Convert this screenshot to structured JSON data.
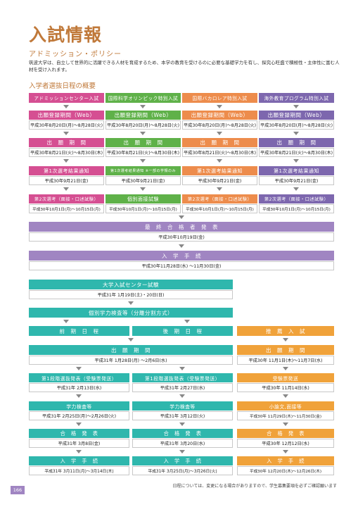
{
  "page": {
    "title": "入試情報",
    "subtitle": "アドミッション・ポリシー",
    "intro": "筑波大学は、自立して世界的に活躍できる人材を育成するため、本学の教育を受けるのに必要な基礎学力を有し、探究心旺盛で積極性・主体性に富む人材を受け入れます。",
    "section_title": "入学者選抜日程の概要",
    "note": "日程については、変更になる場合がありますので、学生募集要項を必ずご確認願います",
    "page_number": "166"
  },
  "special": {
    "columns": [
      {
        "label": "アドミッションセンター入試",
        "color": "#d54f92"
      },
      {
        "label": "国際科学オリンピック特別入試",
        "color": "#5fb149"
      },
      {
        "label": "国際バカロレア特別入試",
        "color": "#ed8c4c"
      },
      {
        "label": "海外教育プログラム特別入試",
        "color": "#7d67ae"
      }
    ],
    "app_label": "出願登録期間（Web）",
    "app_dates": [
      "平成30年8月20日(月)～8月28日(火)",
      "平成30年8月20日(月)～8月28日(火)",
      "平成30年8月20日(月)～8月28日(火)",
      "平成30年8月20日(月)～8月28日(火)"
    ],
    "period_label": "出　願　期　間",
    "period_dates": [
      "平成30年8月21日(火)～8月30日(木)",
      "平成30年8月21日(火)～8月30日(木)",
      "平成30年8月21日(火)～8月30日(木)",
      "平成30年8月21日(火)～8月30日(木)"
    ],
    "first_labels": [
      "第1次選考結果通知",
      "第1次選考結果通知 ※一部の学類のみ",
      "第1次選考結果通知",
      "第1次選考結果通知"
    ],
    "first_dates": [
      "平成30年9月21日(金)",
      "平成30年9月21日(金)",
      "平成30年9月21日(金)",
      "平成30年9月21日(金)"
    ],
    "second_labels": [
      "第2次選考（面接・口述試験）",
      "個別面接試験",
      "第2次選考（面接・口述試験）",
      "第2次選考（面接・口述試験）"
    ],
    "second_dates": [
      "平成30年10月1日(月)～10月15日(月)",
      "平成30年10月1日(月)～10月15日(月)",
      "平成30年10月1日(月)～10月15日(月)",
      "平成30年10月1日(月)～10月15日(月)"
    ],
    "final_label": "最　終　合　格　者　発　表",
    "final_date": "平成30年10月19日(金)",
    "enroll_label": "入　学　手　続",
    "enroll_date": "平成30年11月28日(水) ～11月30日(金)"
  },
  "general": {
    "center_label": "大学入試センター試験",
    "center_date": "平成31年 1月19日(土)・20日(日)",
    "ability_label": "個別学力検査等（分離分割方式）",
    "zenki_label": "前　期　日　程",
    "koki_label": "後　期　日　程",
    "suisen_label": "推　薦　入　試",
    "app_label": "出　願　期　間",
    "app_date": "平成31年 1月28日(月) ～2月6日(水)",
    "suisen_app_label": "出　願　期　間",
    "suisen_app_date": "平成30年 11月1日(木)～11月7日(水)",
    "rows": [
      {
        "zenki": {
          "label": "第1段階選抜発表（受験票発送）",
          "date": "平成31年 2月13日(水)"
        },
        "koki": {
          "label": "第1段階選抜発表（受験票発送）",
          "date": "平成31年 2月27日(水)"
        },
        "suisen": {
          "label": "受験票発送",
          "date": "平成30年 11月14日(水)"
        }
      },
      {
        "zenki": {
          "label": "学力検査等",
          "date": "平成31年 2月25日(月)～2月26日(火)"
        },
        "koki": {
          "label": "学力検査等",
          "date": "平成31年 3月12日(火)"
        },
        "suisen": {
          "label": "小論文,面接等",
          "date": "平成30年 11月29日(木)～11月30日(金)"
        }
      },
      {
        "zenki": {
          "label": "合　格　発　表",
          "date": "平成31年 3月8日(金)"
        },
        "koki": {
          "label": "合　格　発　表",
          "date": "平成31年 3月20日(水)"
        },
        "suisen": {
          "label": "合　格　発　表",
          "date": "平成30年 12月12日(水)"
        }
      },
      {
        "zenki": {
          "label": "入　学　手　続",
          "date": "平成31年 3月11日(月)～3月14日(木)"
        },
        "koki": {
          "label": "入　学　手　続",
          "date": "平成31年 3月25日(月)～3月26日(火)"
        },
        "suisen": {
          "label": "入　学　手　続",
          "date": "平成30年 12月20日(木)～12月26日(木)"
        }
      }
    ]
  }
}
